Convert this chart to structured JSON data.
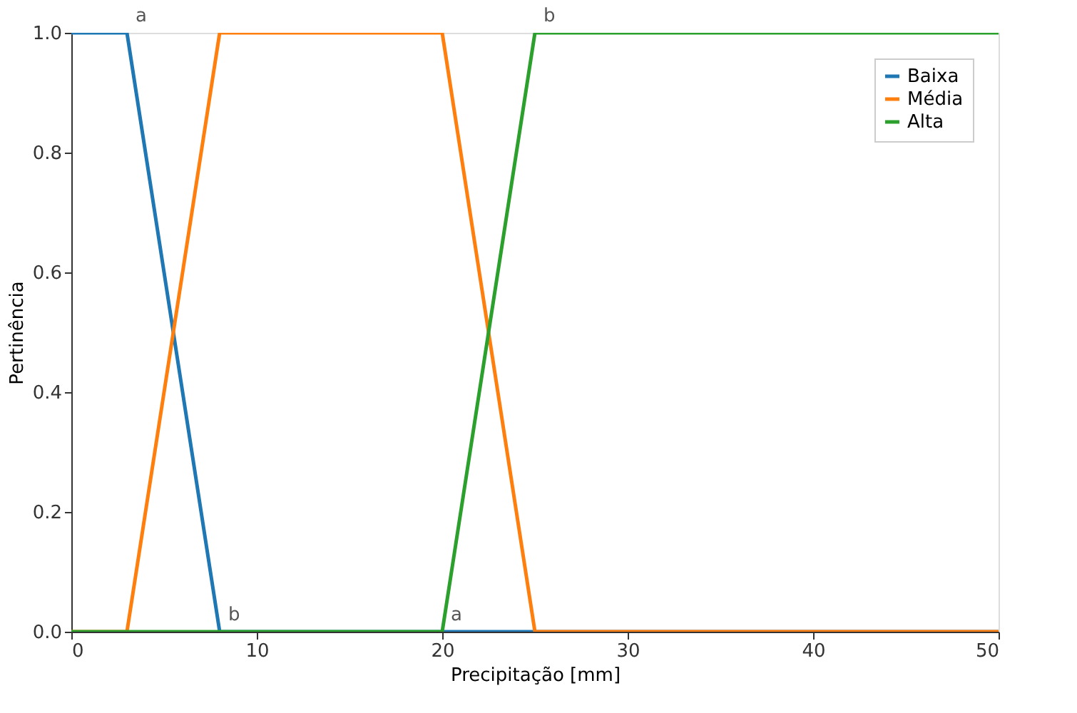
{
  "chart_data": {
    "type": "line",
    "xlabel": "Precipitação [mm]",
    "ylabel": "Pertinência",
    "series": [
      {
        "name": "Baixa",
        "color": "#1f77b4",
        "x": [
          0,
          3,
          8,
          50
        ],
        "values": [
          1,
          1,
          0,
          0
        ]
      },
      {
        "name": "Média",
        "color": "#ff7f0e",
        "x": [
          0,
          3,
          8,
          20,
          25,
          50
        ],
        "values": [
          0,
          0,
          1,
          1,
          0,
          0
        ]
      },
      {
        "name": "Alta",
        "color": "#2ca02c",
        "x": [
          0,
          20,
          25,
          50
        ],
        "values": [
          0,
          0,
          1,
          1
        ]
      }
    ],
    "annotations": [
      {
        "text": "a",
        "x": 3,
        "y": 1
      },
      {
        "text": "b",
        "x": 8,
        "y": 0
      },
      {
        "text": "a",
        "x": 20,
        "y": 0
      },
      {
        "text": "b",
        "x": 25,
        "y": 1
      }
    ],
    "xlim": [
      0,
      50
    ],
    "xticks": [
      0,
      10,
      20,
      30,
      40,
      50
    ],
    "ylim": [
      0,
      1
    ],
    "yticks": [
      {
        "value": 0,
        "label": "0.0"
      },
      {
        "value": 0.2,
        "label": "0.2"
      },
      {
        "value": 0.4,
        "label": "0.4"
      },
      {
        "value": 0.6,
        "label": "0.6"
      },
      {
        "value": 0.8,
        "label": "0.8"
      },
      {
        "value": 1,
        "label": "1.0"
      }
    ],
    "legend": "top right",
    "grid": false,
    "line_style": "solid",
    "marker": "none"
  }
}
